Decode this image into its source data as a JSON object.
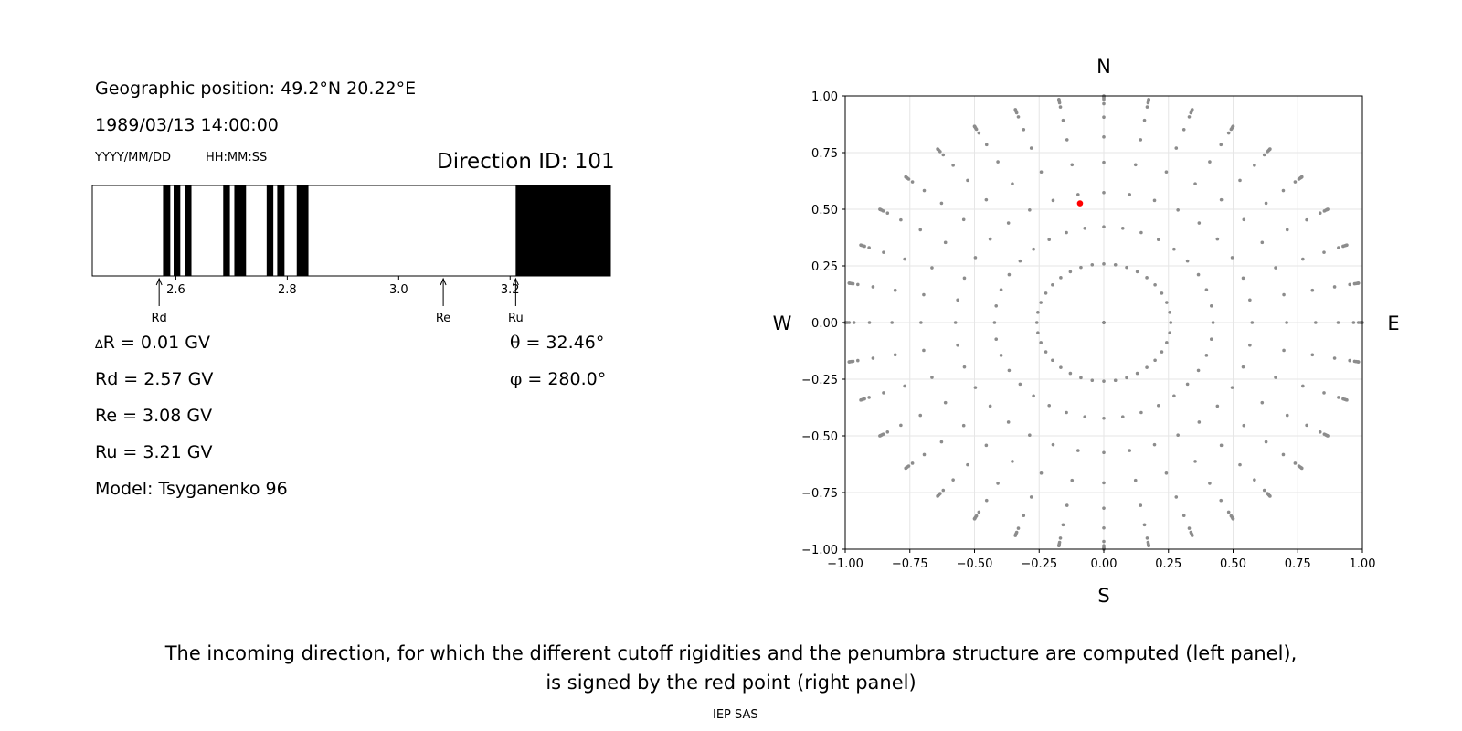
{
  "header": {
    "geo_position": "Geographic position: 49.2°N 20.22°E",
    "datetime": "1989/03/13 14:00:00",
    "date_format": "YYYY/MM/DD",
    "time_format": "HH:MM:SS",
    "direction_id": "Direction ID: 101"
  },
  "values": {
    "delta_r_symbol": "∆",
    "delta_r": "R = 0.01 GV",
    "rd": "Rd = 2.57 GV",
    "re": "Re = 3.08 GV",
    "ru": "Ru = 3.21 GV",
    "model": "Model: Tsyganenko 96",
    "theta_symbol": "θ",
    "theta": "= 32.46°",
    "phi_symbol": "φ",
    "phi": "= 280.0°"
  },
  "chart_data": [
    {
      "type": "bar",
      "name": "penumbra",
      "xlim": [
        2.45,
        3.38
      ],
      "xticks": [
        2.6,
        2.8,
        3.0,
        3.2
      ],
      "xtick_labels": [
        "2.6",
        "2.8",
        "3.0",
        "3.2"
      ],
      "forbidden_bands": [
        [
          2.577,
          2.59
        ],
        [
          2.596,
          2.608
        ],
        [
          2.616,
          2.628
        ],
        [
          2.685,
          2.697
        ],
        [
          2.705,
          2.726
        ],
        [
          2.763,
          2.775
        ],
        [
          2.782,
          2.795
        ],
        [
          2.817,
          2.838
        ],
        [
          3.21,
          3.38
        ]
      ],
      "markers": [
        {
          "label": "Rd",
          "value": 2.57
        },
        {
          "label": "Re",
          "value": 3.08
        },
        {
          "label": "Ru",
          "value": 3.21
        }
      ]
    },
    {
      "type": "scatter",
      "name": "directions",
      "xlim": [
        -1.0,
        1.0
      ],
      "ylim": [
        -1.0,
        1.0
      ],
      "xticks": [
        "−1.00",
        "−0.75",
        "−0.50",
        "−0.25",
        "0.00",
        "0.25",
        "0.50",
        "0.75",
        "1.00"
      ],
      "yticks": [
        "1.00",
        "0.75",
        "0.50",
        "0.25",
        "0.00",
        "−0.25",
        "−0.50",
        "−0.75",
        "−1.00"
      ],
      "grid": true,
      "compass": {
        "north": "N",
        "south": "S",
        "west": "W",
        "east": "E"
      },
      "grid_points": {
        "zenith_angles_deg": [
          0,
          15,
          25,
          35,
          45,
          55,
          65,
          75,
          80,
          82.5,
          85,
          87.5,
          90
        ],
        "azimuth_step_deg": 10,
        "color": "#8c8c8c"
      },
      "selected_point": {
        "x": -0.092,
        "y": 0.526,
        "color": "#ff0000"
      }
    }
  ],
  "footer": {
    "caption_line1": "The incoming direction, for which the different cutoff rigidities and the penumbra structure are computed (left panel),",
    "caption_line2": "is signed by the red point (right panel)",
    "credit": "IEP SAS"
  }
}
